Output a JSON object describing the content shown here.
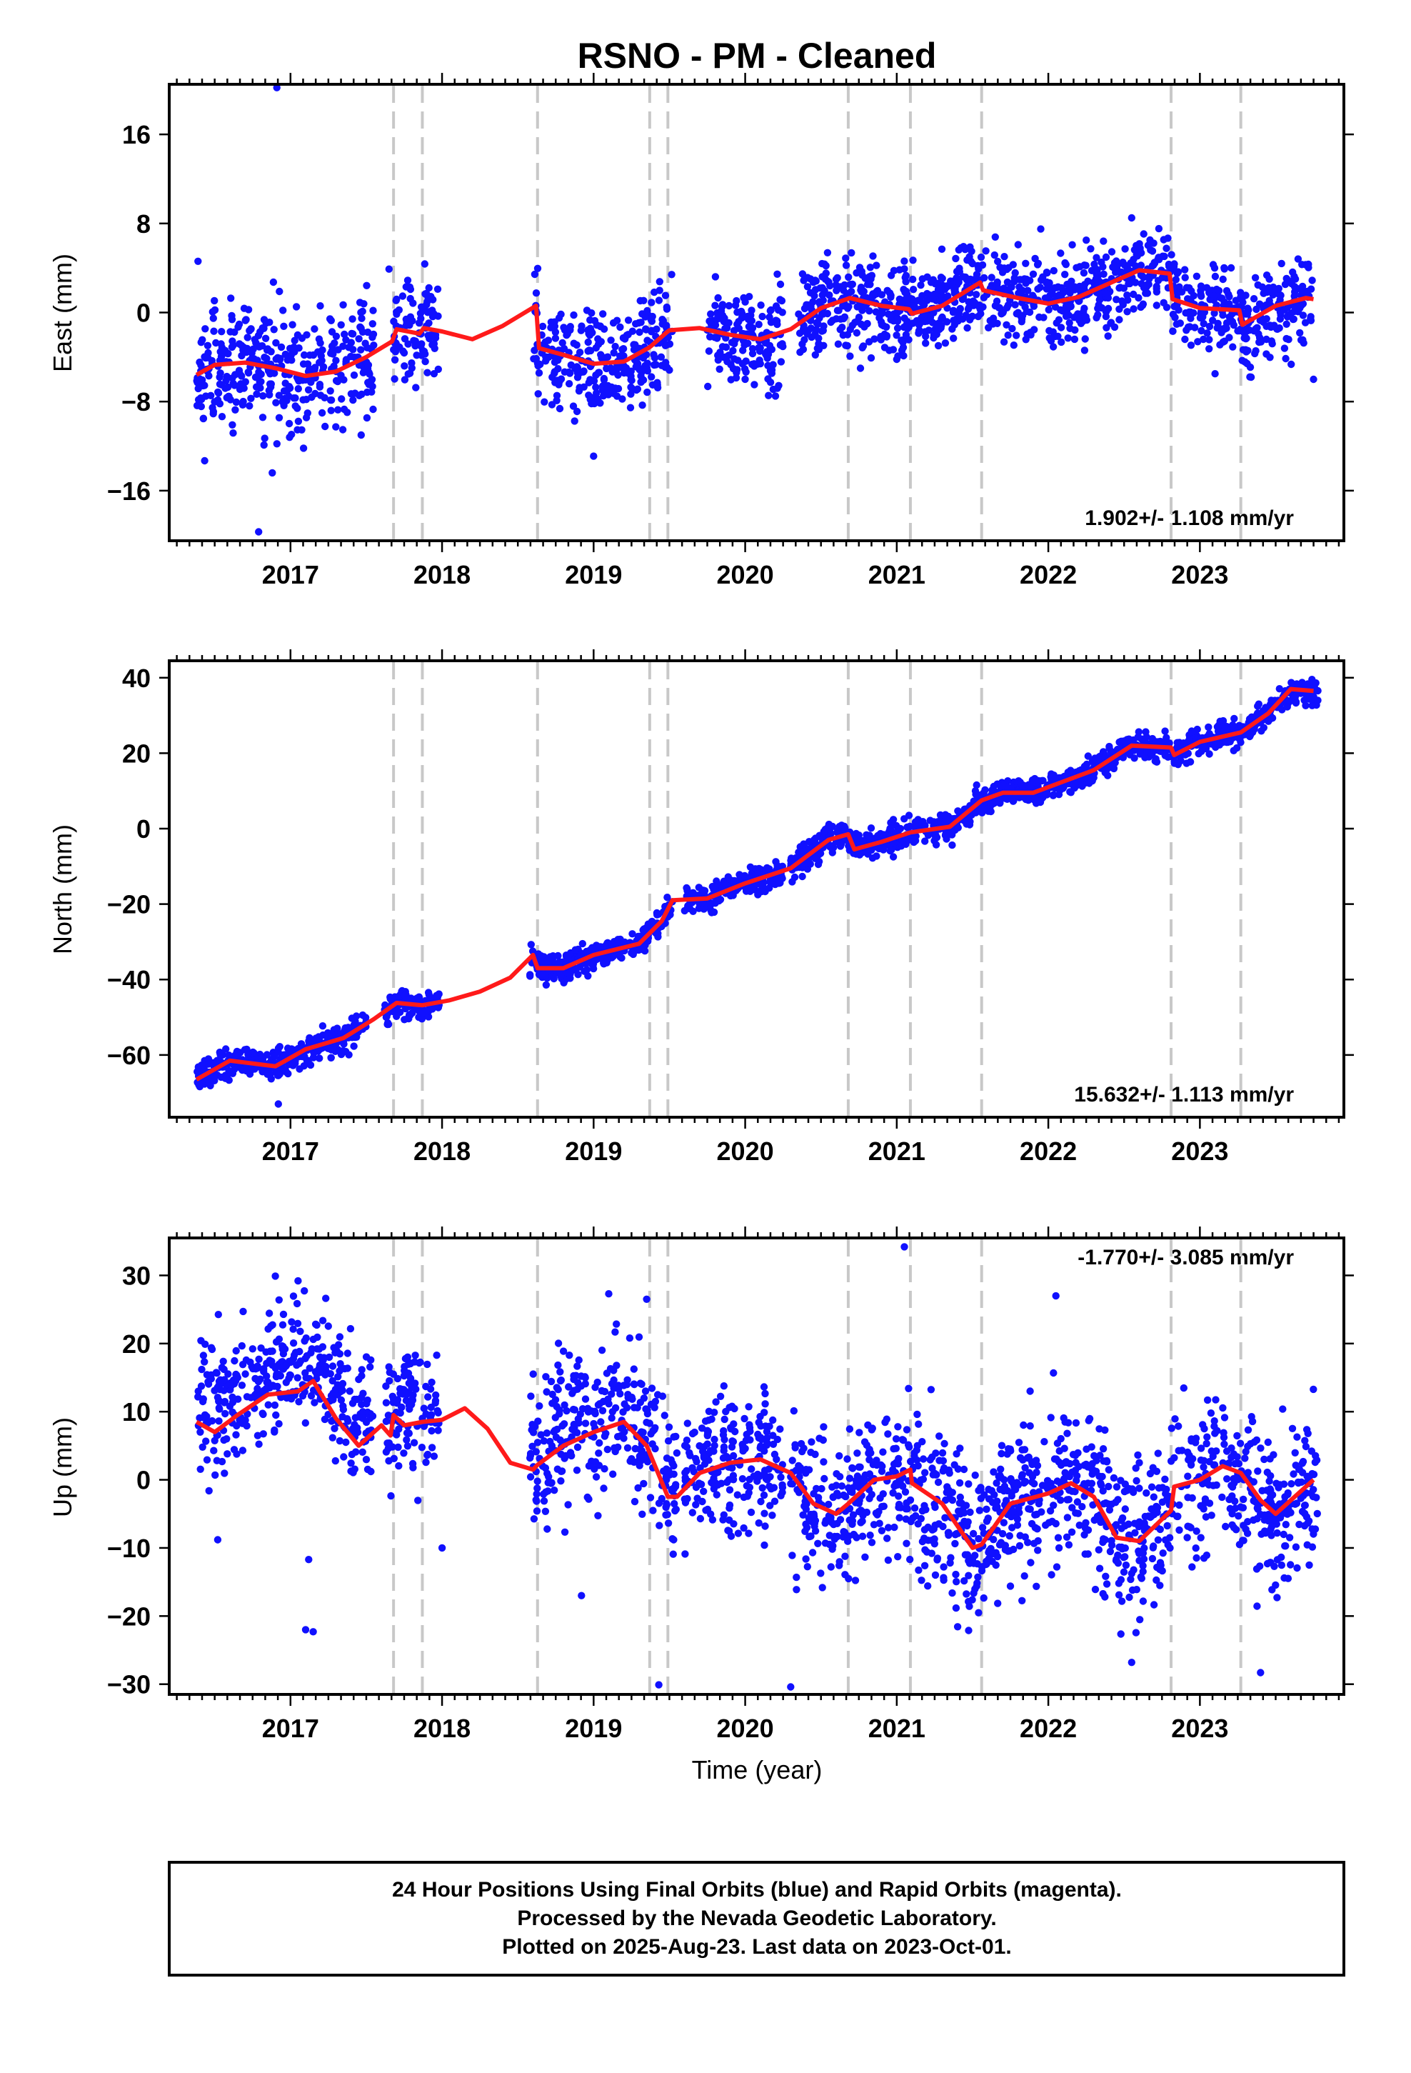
{
  "title": "RSNO  - PM - Cleaned",
  "xlabel": "Time (year)",
  "footer_lines": [
    "24 Hour Positions Using Final Orbits (blue) and Rapid Orbits (magenta).",
    "Processed by the Nevada Geodetic Laboratory.",
    "Plotted on 2025-Aug-23. Last data on 2023-Oct-01."
  ],
  "colors": {
    "final_orbits": "#1010ff",
    "fit_line": "#ff1a1a",
    "offset_lines": "#c8c8c8"
  },
  "chart_data": [
    {
      "type": "scatter",
      "component": "east",
      "ylabel": "East (mm)",
      "rate_text": "1.902+/- 1.108 mm/yr",
      "rate_position": "bottom-right",
      "xlim": [
        2016.2,
        2023.95
      ],
      "ylim": [
        -20.5,
        20.5
      ],
      "x_ticks": [
        2017,
        2018,
        2019,
        2020,
        2021,
        2022,
        2023
      ],
      "x_tick_labels": [
        "2017",
        "2018",
        "2019",
        "2020",
        "2021",
        "2022",
        "2023"
      ],
      "y_ticks": [
        -16,
        -8,
        0,
        8,
        16
      ],
      "y_tick_labels": [
        "−16",
        "−8",
        "0",
        "8",
        "16"
      ],
      "offset_epochs": [
        2017.68,
        2017.87,
        2018.63,
        2019.37,
        2019.49,
        2020.68,
        2021.09,
        2021.56,
        2022.81,
        2023.27
      ],
      "trend": {
        "slope": 1.902,
        "uncertainty": 1.108
      },
      "model_line": [
        [
          2016.38,
          -5.6
        ],
        [
          2016.5,
          -4.7
        ],
        [
          2016.7,
          -4.5
        ],
        [
          2016.9,
          -5.0
        ],
        [
          2017.1,
          -5.7
        ],
        [
          2017.3,
          -5.3
        ],
        [
          2017.5,
          -4.0
        ],
        [
          2017.67,
          -2.6
        ],
        [
          2017.7,
          -1.5
        ],
        [
          2017.85,
          -1.9
        ],
        [
          2017.88,
          -1.4
        ],
        [
          2018.0,
          -1.7
        ],
        [
          2018.2,
          -2.4
        ],
        [
          2018.4,
          -1.2
        ],
        [
          2018.62,
          0.6
        ],
        [
          2018.64,
          -3.2
        ],
        [
          2018.8,
          -3.8
        ],
        [
          2019.0,
          -4.6
        ],
        [
          2019.2,
          -4.4
        ],
        [
          2019.36,
          -3.2
        ],
        [
          2019.38,
          -3.0
        ],
        [
          2019.48,
          -1.8
        ],
        [
          2019.5,
          -1.6
        ],
        [
          2019.7,
          -1.4
        ],
        [
          2019.9,
          -2.0
        ],
        [
          2020.1,
          -2.4
        ],
        [
          2020.3,
          -1.5
        ],
        [
          2020.5,
          0.4
        ],
        [
          2020.67,
          1.2
        ],
        [
          2020.69,
          1.3
        ],
        [
          2020.9,
          0.6
        ],
        [
          2021.08,
          0.3
        ],
        [
          2021.1,
          -0.1
        ],
        [
          2021.3,
          0.6
        ],
        [
          2021.55,
          2.7
        ],
        [
          2021.57,
          2.0
        ],
        [
          2021.8,
          1.3
        ],
        [
          2022.0,
          0.8
        ],
        [
          2022.2,
          1.4
        ],
        [
          2022.45,
          2.9
        ],
        [
          2022.6,
          3.8
        ],
        [
          2022.8,
          3.5
        ],
        [
          2022.82,
          1.2
        ],
        [
          2023.0,
          0.4
        ],
        [
          2023.26,
          0.2
        ],
        [
          2023.28,
          -1.1
        ],
        [
          2023.5,
          0.6
        ],
        [
          2023.7,
          1.3
        ],
        [
          2023.75,
          1.2
        ]
      ],
      "points": [
        [
          2016.39,
          4.6
        ],
        [
          2016.91,
          20.2
        ],
        [
          2016.88,
          -14.4
        ],
        [
          2016.79,
          -19.7
        ],
        [
          2016.83,
          -11.3
        ],
        [
          2016.95,
          0.2
        ],
        [
          2017.65,
          3.9
        ],
        [
          2019.0,
          -12.9
        ],
        [
          2019.42,
          -6.3
        ],
        [
          2021.0,
          -4.2
        ],
        [
          2021.95,
          7.5
        ],
        [
          2022.25,
          6.5
        ],
        [
          2022.55,
          8.5
        ],
        [
          2023.1,
          -5.5
        ],
        [
          2023.75,
          -6.0
        ],
        [
          2020.2,
          -7.5
        ]
      ],
      "cloud": [
        [
          2016.38,
          2017.55,
          -4.8,
          2.6,
          0.0,
          -15,
          -5.5
        ],
        [
          2017.68,
          2017.98,
          -1.6,
          2.2,
          0.0,
          -1.8,
          -2.2
        ],
        [
          2018.6,
          2019.38,
          -3.4,
          2.3,
          0.0,
          -4.5,
          -3.2
        ],
        [
          2019.38,
          2019.52,
          -1.2,
          2.0,
          0.0,
          -2,
          -2.2
        ],
        [
          2019.75,
          2020.25,
          -2.0,
          2.0,
          0.0,
          -2.2,
          -1.8
        ],
        [
          2020.35,
          2023.75,
          0.5,
          1.9,
          -0.3,
          0.4,
          0.4
        ]
      ]
    },
    {
      "type": "scatter",
      "component": "north",
      "ylabel": "North (mm)",
      "rate_text": "15.632+/- 1.113 mm/yr",
      "rate_position": "bottom-right",
      "xlim": [
        2016.2,
        2023.95
      ],
      "ylim": [
        -76.5,
        44.5
      ],
      "x_ticks": [
        2017,
        2018,
        2019,
        2020,
        2021,
        2022,
        2023
      ],
      "x_tick_labels": [
        "2017",
        "2018",
        "2019",
        "2020",
        "2021",
        "2022",
        "2023"
      ],
      "y_ticks": [
        -60,
        -40,
        -20,
        0,
        20,
        40
      ],
      "y_tick_labels": [
        "−60",
        "−40",
        "−20",
        "0",
        "20",
        "40"
      ],
      "offset_epochs": [
        2017.68,
        2017.87,
        2018.63,
        2019.37,
        2019.49,
        2020.68,
        2021.09,
        2021.56,
        2022.81,
        2023.27
      ],
      "trend": {
        "slope": 15.632,
        "uncertainty": 1.113
      },
      "model_line": [
        [
          2016.38,
          -66.5
        ],
        [
          2016.6,
          -61.5
        ],
        [
          2016.9,
          -63.0
        ],
        [
          2017.1,
          -58.5
        ],
        [
          2017.35,
          -55.5
        ],
        [
          2017.55,
          -50.5
        ],
        [
          2017.7,
          -46.2
        ],
        [
          2017.87,
          -46.8
        ],
        [
          2018.05,
          -45.5
        ],
        [
          2018.25,
          -43.2
        ],
        [
          2018.45,
          -39.5
        ],
        [
          2018.6,
          -33.5
        ],
        [
          2018.63,
          -37.0
        ],
        [
          2018.8,
          -37.0
        ],
        [
          2019.0,
          -33.5
        ],
        [
          2019.3,
          -30.5
        ],
        [
          2019.45,
          -24.5
        ],
        [
          2019.52,
          -19.0
        ],
        [
          2019.75,
          -18.5
        ],
        [
          2020.0,
          -14.5
        ],
        [
          2020.3,
          -10.5
        ],
        [
          2020.55,
          -3.0
        ],
        [
          2020.68,
          -1.5
        ],
        [
          2020.72,
          -5.5
        ],
        [
          2020.9,
          -3.5
        ],
        [
          2021.09,
          -1.0
        ],
        [
          2021.35,
          0.5
        ],
        [
          2021.56,
          7.5
        ],
        [
          2021.7,
          9.5
        ],
        [
          2021.9,
          9.5
        ],
        [
          2022.1,
          12.5
        ],
        [
          2022.3,
          15.5
        ],
        [
          2022.55,
          22.0
        ],
        [
          2022.81,
          21.5
        ],
        [
          2022.83,
          19.5
        ],
        [
          2023.0,
          23.0
        ],
        [
          2023.27,
          25.5
        ],
        [
          2023.45,
          30.5
        ],
        [
          2023.6,
          37.0
        ],
        [
          2023.75,
          36.5
        ]
      ],
      "points": [
        [
          2016.92,
          -73.0
        ]
      ],
      "cloud": [
        [
          2016.38,
          2017.5,
          0.0,
          1.9,
          0.0,
          0.0,
          0.0
        ],
        [
          2017.62,
          2017.98,
          0.0,
          1.7,
          0.0,
          0.0,
          0.0
        ],
        [
          2018.58,
          2019.52,
          0.0,
          1.8,
          0.0,
          0.0,
          0.0
        ],
        [
          2019.6,
          2020.25,
          0.0,
          1.8,
          0.0,
          0.0,
          0.0
        ],
        [
          2020.3,
          2023.78,
          0.0,
          1.8,
          0.0,
          0.0,
          0.0
        ]
      ]
    },
    {
      "type": "scatter",
      "component": "up",
      "ylabel": "Up (mm)",
      "rate_text": "-1.770+/- 3.085 mm/yr",
      "rate_position": "top-right",
      "xlim": [
        2016.2,
        2023.95
      ],
      "ylim": [
        -31.5,
        35.5
      ],
      "x_ticks": [
        2017,
        2018,
        2019,
        2020,
        2021,
        2022,
        2023
      ],
      "x_tick_labels": [
        "2017",
        "2018",
        "2019",
        "2020",
        "2021",
        "2022",
        "2023"
      ],
      "y_ticks": [
        -30,
        -20,
        -10,
        0,
        10,
        20,
        30
      ],
      "y_tick_labels": [
        "−30",
        "−20",
        "−10",
        "0",
        "10",
        "20",
        "30"
      ],
      "offset_epochs": [
        2017.68,
        2017.87,
        2018.63,
        2019.37,
        2019.49,
        2020.68,
        2021.09,
        2021.56,
        2022.81,
        2023.27
      ],
      "trend": {
        "slope": -1.77,
        "uncertainty": 3.085
      },
      "model_line": [
        [
          2016.38,
          8.5
        ],
        [
          2016.5,
          7.0
        ],
        [
          2016.65,
          9.5
        ],
        [
          2016.85,
          12.5
        ],
        [
          2017.05,
          13.0
        ],
        [
          2017.15,
          14.5
        ],
        [
          2017.3,
          9.0
        ],
        [
          2017.45,
          5.0
        ],
        [
          2017.6,
          8.0
        ],
        [
          2017.66,
          6.5
        ],
        [
          2017.68,
          9.5
        ],
        [
          2017.75,
          8.0
        ],
        [
          2017.87,
          8.5
        ],
        [
          2018.0,
          8.8
        ],
        [
          2018.15,
          10.5
        ],
        [
          2018.3,
          7.5
        ],
        [
          2018.45,
          2.5
        ],
        [
          2018.6,
          1.5
        ],
        [
          2018.63,
          2.2
        ],
        [
          2018.8,
          5.0
        ],
        [
          2019.0,
          7.0
        ],
        [
          2019.2,
          8.5
        ],
        [
          2019.35,
          5.0
        ],
        [
          2019.49,
          -2.5
        ],
        [
          2019.55,
          -2.5
        ],
        [
          2019.7,
          1.0
        ],
        [
          2019.9,
          2.5
        ],
        [
          2020.1,
          3.0
        ],
        [
          2020.3,
          1.0
        ],
        [
          2020.45,
          -3.5
        ],
        [
          2020.6,
          -5.0
        ],
        [
          2020.68,
          -3.5
        ],
        [
          2020.85,
          0.0
        ],
        [
          2021.0,
          0.5
        ],
        [
          2021.09,
          1.5
        ],
        [
          2021.1,
          -0.5
        ],
        [
          2021.3,
          -3.5
        ],
        [
          2021.5,
          -10.0
        ],
        [
          2021.56,
          -9.5
        ],
        [
          2021.75,
          -3.5
        ],
        [
          2022.0,
          -2.0
        ],
        [
          2022.15,
          -0.5
        ],
        [
          2022.3,
          -2.5
        ],
        [
          2022.45,
          -8.5
        ],
        [
          2022.6,
          -9.0
        ],
        [
          2022.81,
          -4.5
        ],
        [
          2022.83,
          -1.0
        ],
        [
          2023.0,
          0.0
        ],
        [
          2023.15,
          2.0
        ],
        [
          2023.27,
          1.0
        ],
        [
          2023.4,
          -3.0
        ],
        [
          2023.5,
          -5.0
        ],
        [
          2023.65,
          -2.0
        ],
        [
          2023.75,
          0.0
        ]
      ],
      "points": [
        [
          2016.9,
          29.9
        ],
        [
          2017.05,
          29.2
        ],
        [
          2017.1,
          -22.0
        ],
        [
          2017.15,
          -22.3
        ],
        [
          2017.12,
          -11.7
        ],
        [
          2021.05,
          34.2
        ],
        [
          2022.05,
          27.0
        ],
        [
          2019.1,
          27.3
        ],
        [
          2019.35,
          26.5
        ],
        [
          2019.43,
          -30.1
        ],
        [
          2020.3,
          -30.4
        ],
        [
          2023.4,
          -28.3
        ],
        [
          2022.55,
          -26.8
        ],
        [
          2018.0,
          -10.0
        ],
        [
          2018.92,
          -17.0
        ],
        [
          2016.52,
          -8.8
        ]
      ],
      "cloud": [
        [
          2016.38,
          2017.55,
          11.0,
          5.0,
          0.0,
          0.0,
          0.0
        ],
        [
          2017.62,
          2017.98,
          8.5,
          4.5,
          0.0,
          0.0,
          0.0
        ],
        [
          2018.58,
          2019.55,
          5.0,
          5.5,
          0.0,
          0.0,
          0.0
        ],
        [
          2019.6,
          2020.25,
          2.0,
          5.0,
          0.0,
          0.0,
          0.0
        ],
        [
          2020.3,
          2023.78,
          0.0,
          5.5,
          0.0,
          0.0,
          0.0
        ]
      ]
    }
  ]
}
